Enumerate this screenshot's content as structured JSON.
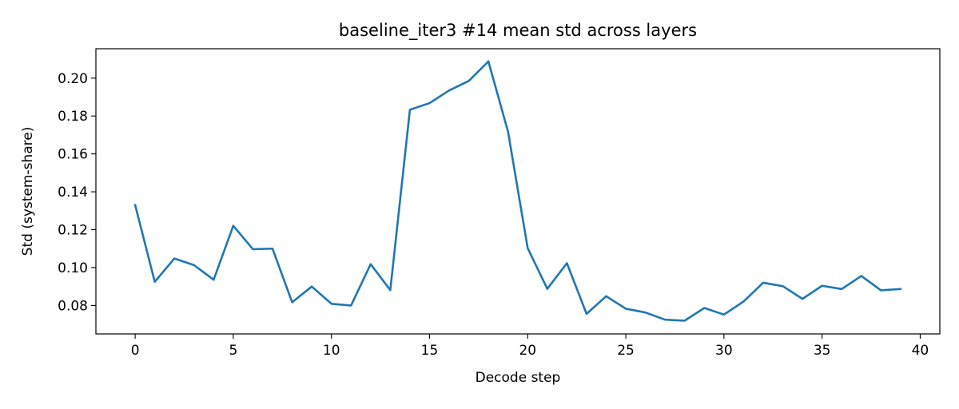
{
  "chart_data": {
    "type": "line",
    "title": "baseline_iter3 #14 mean std across layers",
    "xlabel": "Decode step",
    "ylabel": "Std (system-share)",
    "xlim": [
      -2,
      41
    ],
    "ylim": [
      0.065,
      0.2155
    ],
    "xticks": [
      0,
      5,
      10,
      15,
      20,
      25,
      30,
      35,
      40
    ],
    "yticks": [
      0.08,
      0.1,
      0.12,
      0.14,
      0.16,
      0.18,
      0.2
    ],
    "ytick_labels": [
      "0.08",
      "0.10",
      "0.12",
      "0.14",
      "0.16",
      "0.18",
      "0.20"
    ],
    "grid": false,
    "line_color": "#1f77b4",
    "series": [
      {
        "x": [
          0,
          1,
          2,
          3,
          4,
          5,
          6,
          7,
          8,
          9,
          10,
          11,
          12,
          13,
          14,
          15,
          16,
          17,
          18,
          19,
          20,
          21,
          22,
          23,
          24,
          25,
          26,
          27,
          28,
          29,
          30,
          31,
          32,
          33,
          34,
          35,
          36,
          37,
          38,
          39
        ],
        "values": [
          0.133,
          0.0925,
          0.1048,
          0.1013,
          0.0936,
          0.1221,
          0.1097,
          0.11,
          0.0817,
          0.09,
          0.0809,
          0.08,
          0.1018,
          0.0881,
          0.1833,
          0.1868,
          0.1935,
          0.1985,
          0.2088,
          0.1717,
          0.1103,
          0.0888,
          0.1023,
          0.0756,
          0.0849,
          0.0783,
          0.0763,
          0.0725,
          0.072,
          0.0787,
          0.0752,
          0.0821,
          0.092,
          0.0902,
          0.0835,
          0.0904,
          0.0887,
          0.0956,
          0.088,
          0.0887
        ]
      }
    ]
  }
}
